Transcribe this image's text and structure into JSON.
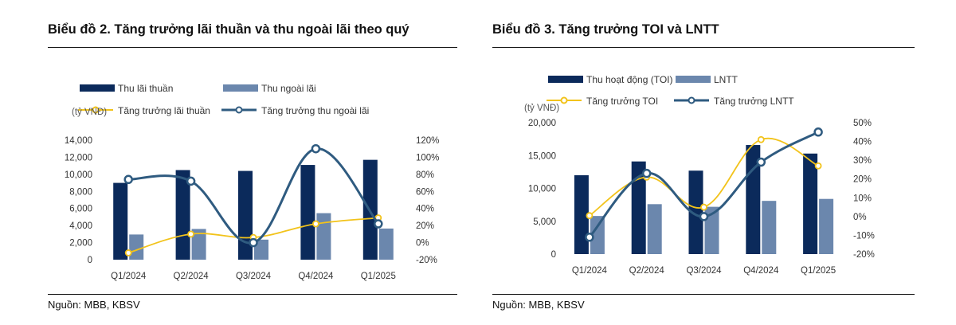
{
  "charts": [
    {
      "title": "Biểu đồ 2. Tăng trưởng lãi thuần và thu ngoài lãi theo quý",
      "source": "Nguồn: MBB, KBSV",
      "chart_data": {
        "type": "bar",
        "unit_label": "(tỷ VNĐ)",
        "categories": [
          "Q1/2024",
          "Q2/2024",
          "Q3/2024",
          "Q4/2024",
          "Q1/2025"
        ],
        "series": [
          {
            "name": "Thu lãi thuần",
            "kind": "bar",
            "axis": "left",
            "color": "#0b2a5b",
            "values": [
              9000,
              10500,
              10400,
              11100,
              11700
            ]
          },
          {
            "name": "Thu ngoài lãi",
            "kind": "bar",
            "axis": "left",
            "color": "#6b87ad",
            "values": [
              2950,
              3600,
              2350,
              5450,
              3650
            ]
          },
          {
            "name": "Tăng trưởng lãi thuần",
            "kind": "line",
            "axis": "right",
            "color": "#f2c31b",
            "values": [
              -12,
              10,
              6,
              22,
              29
            ]
          },
          {
            "name": "Tăng trưởng thu ngoài lãi",
            "kind": "line",
            "axis": "right",
            "color": "#2f5b80",
            "values": [
              74,
              72,
              0,
              110,
              22
            ]
          }
        ],
        "y_left": {
          "min": 0,
          "max": 14000,
          "ticks": [
            "0",
            "2,000",
            "4,000",
            "6,000",
            "8,000",
            "10,000",
            "12,000",
            "14,000"
          ]
        },
        "y_right": {
          "min": -20,
          "max": 120,
          "ticks": [
            "-20%",
            "0%",
            "20%",
            "40%",
            "60%",
            "80%",
            "100%",
            "120%"
          ]
        },
        "legend_placement": "top",
        "grid": false
      }
    },
    {
      "title": "Biểu đồ 3. Tăng trưởng TOI và LNTT",
      "source": "Nguồn: MBB, KBSV",
      "chart_data": {
        "type": "bar",
        "unit_label": "(tỷ VNĐ)",
        "categories": [
          "Q1/2024",
          "Q2/2024",
          "Q3/2024",
          "Q4/2024",
          "Q1/2025"
        ],
        "series": [
          {
            "name": "Thu hoạt động (TOI)",
            "kind": "bar",
            "axis": "left",
            "color": "#0b2a5b",
            "values": [
              12000,
              14100,
              12700,
              16600,
              15300
            ]
          },
          {
            "name": "LNTT",
            "kind": "bar",
            "axis": "left",
            "color": "#6b87ad",
            "values": [
              5800,
              7600,
              7200,
              8100,
              8400
            ]
          },
          {
            "name": "Tăng trưởng TOI",
            "kind": "line",
            "axis": "right",
            "color": "#f2c31b",
            "values": [
              0.5,
              21,
              5,
              41,
              27
            ]
          },
          {
            "name": "Tăng trưởng LNTT",
            "kind": "line",
            "axis": "right",
            "color": "#2f5b80",
            "values": [
              -11,
              23,
              0,
              29,
              45
            ]
          }
        ],
        "y_left": {
          "min": 0,
          "max": 20000,
          "ticks": [
            "0",
            "5,000",
            "10,000",
            "15,000",
            "20,000"
          ]
        },
        "y_right": {
          "min": -20,
          "max": 50,
          "ticks": [
            "-20%",
            "-10%",
            "0%",
            "10%",
            "20%",
            "30%",
            "40%",
            "50%"
          ]
        },
        "legend_placement": "top",
        "grid": false
      }
    }
  ]
}
